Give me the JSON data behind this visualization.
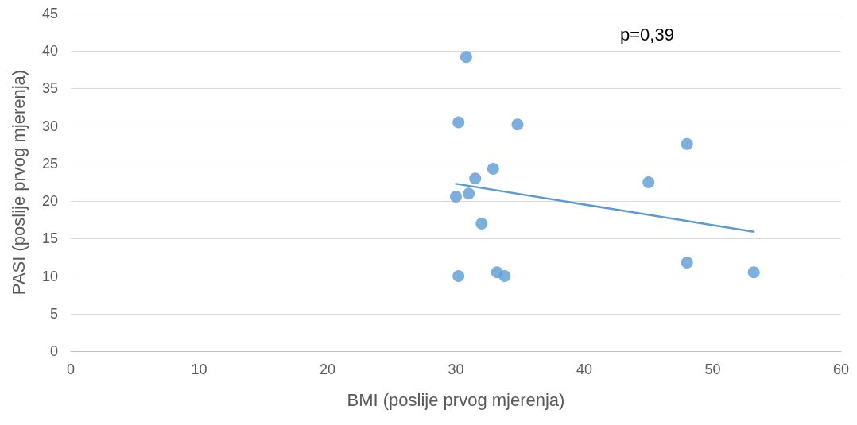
{
  "chart_data": {
    "type": "scatter",
    "xlabel": "BMI (poslije prvog mjerenja)",
    "ylabel": "PASI (poslije prvog mjerenja)",
    "annotations": [
      "p=0,39"
    ],
    "series": [
      {
        "color": "#5b9bd5",
        "marker": "circle",
        "x": [
          30.8,
          30.2,
          34.8,
          48.0,
          32.9,
          31.5,
          45.0,
          30.0,
          31.0,
          32.0,
          48.0,
          33.2,
          53.2,
          30.2,
          33.8
        ],
        "values": [
          39.2,
          30.5,
          30.2,
          27.6,
          24.3,
          23.0,
          22.5,
          20.6,
          21.0,
          17.0,
          11.8,
          10.5,
          10.5,
          10.0,
          10.0
        ]
      },
      {
        "type": "line",
        "color": "#5b9bd5",
        "marker": "none",
        "line_style": "solid",
        "x": [
          30.0,
          53.2
        ],
        "values": [
          22.3,
          15.9
        ]
      }
    ],
    "xlim": [
      0,
      60
    ],
    "xticks": [
      0,
      10,
      20,
      30,
      40,
      50,
      60
    ],
    "ylim": [
      0,
      45
    ],
    "yticks": [
      0,
      5,
      10,
      15,
      20,
      25,
      30,
      35,
      40,
      45
    ],
    "grid": "y"
  }
}
